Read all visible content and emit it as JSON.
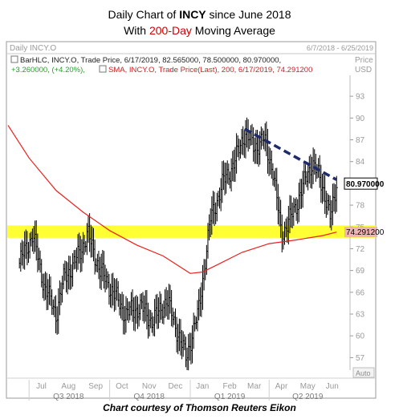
{
  "title": {
    "line1_a": "Daily Chart of ",
    "line1_ticker": "INCY",
    "line1_b": " since June 2018",
    "line2_a": "With ",
    "line2_highlight": "200-Day",
    "line2_b": " Moving Average"
  },
  "caption": "Chart courtesy of Thomson Reuters Eikon",
  "chart_data": {
    "type": "ohlc-bar",
    "panel_title": "Daily INCY.O",
    "date_range_label": "6/7/2018 - 6/25/2019",
    "price_axis_label": "Price",
    "currency_label": "USD",
    "auto_label": "Auto",
    "legend_bar": "BarHLC, INCY.O, Trade Price, 6/17/2019, 82.565000, 78.500000, 80.970000,",
    "legend_change": "+3.260000, (+4.20%),",
    "legend_sma": "SMA, INCY.O, Trade Price(Last), 200, 6/17/2019, 74.291200",
    "ylim": [
      55.5,
      95
    ],
    "y_ticks": [
      93,
      90,
      87,
      84,
      81,
      78,
      75,
      72,
      69,
      66,
      63,
      60,
      57
    ],
    "month_labels": [
      "Jul",
      "Aug",
      "Sep",
      "Oct",
      "Nov",
      "Dec",
      "Jan",
      "Feb",
      "Mar",
      "Apr",
      "May",
      "Jun"
    ],
    "quarter_labels": [
      "Q3 2018",
      "Q4 2018",
      "Q1 2019",
      "Q2 2019"
    ],
    "last_price_label": "80.970000",
    "sma_label": "74.291200",
    "support_zone": [
      73.5,
      75.2
    ],
    "trendline": {
      "x": [
        "2019-03-04",
        "2019-06-17"
      ],
      "y": [
        88.5,
        81.5
      ]
    },
    "price_series": {
      "name": "INCY.O",
      "x": [
        "2018-06-20",
        "2018-07-05",
        "2018-07-18",
        "2018-08-01",
        "2018-08-10",
        "2018-08-22",
        "2018-09-06",
        "2018-09-20",
        "2018-10-05",
        "2018-10-19",
        "2018-11-05",
        "2018-11-19",
        "2018-12-05",
        "2018-12-19",
        "2018-12-27",
        "2019-01-10",
        "2019-01-24",
        "2019-02-07",
        "2019-02-21",
        "2019-03-04",
        "2019-03-15",
        "2019-03-26",
        "2019-04-05",
        "2019-04-15",
        "2019-04-25",
        "2019-05-08",
        "2019-05-20",
        "2019-06-03",
        "2019-06-10",
        "2019-06-17"
      ],
      "y": [
        70,
        74,
        67,
        63,
        68,
        70,
        74,
        69,
        66,
        63,
        64,
        62,
        65,
        60,
        57,
        63,
        76,
        81,
        84,
        88,
        86,
        87,
        83,
        74,
        76,
        80,
        84,
        80,
        76,
        81
      ]
    },
    "sma_series": {
      "name": "SMA 200",
      "x": [
        "2018-06-07",
        "2018-07-01",
        "2018-08-01",
        "2018-09-01",
        "2018-10-01",
        "2018-11-01",
        "2018-12-01",
        "2019-01-01",
        "2019-01-15",
        "2019-02-01",
        "2019-03-01",
        "2019-04-01",
        "2019-05-01",
        "2019-06-01",
        "2019-06-17"
      ],
      "y": [
        89,
        84.5,
        80,
        77,
        74.5,
        72.5,
        71,
        68.6,
        68.8,
        69.8,
        71.5,
        72.7,
        73.2,
        73.8,
        74.29
      ]
    },
    "colors": {
      "price": "#000000",
      "sma": "#e8211d",
      "support_zone": "#ffff33",
      "trendline": "#1f2a6b",
      "last_label_bg": "#ffffff",
      "sma_label_bg": "#f2b3b3"
    }
  }
}
